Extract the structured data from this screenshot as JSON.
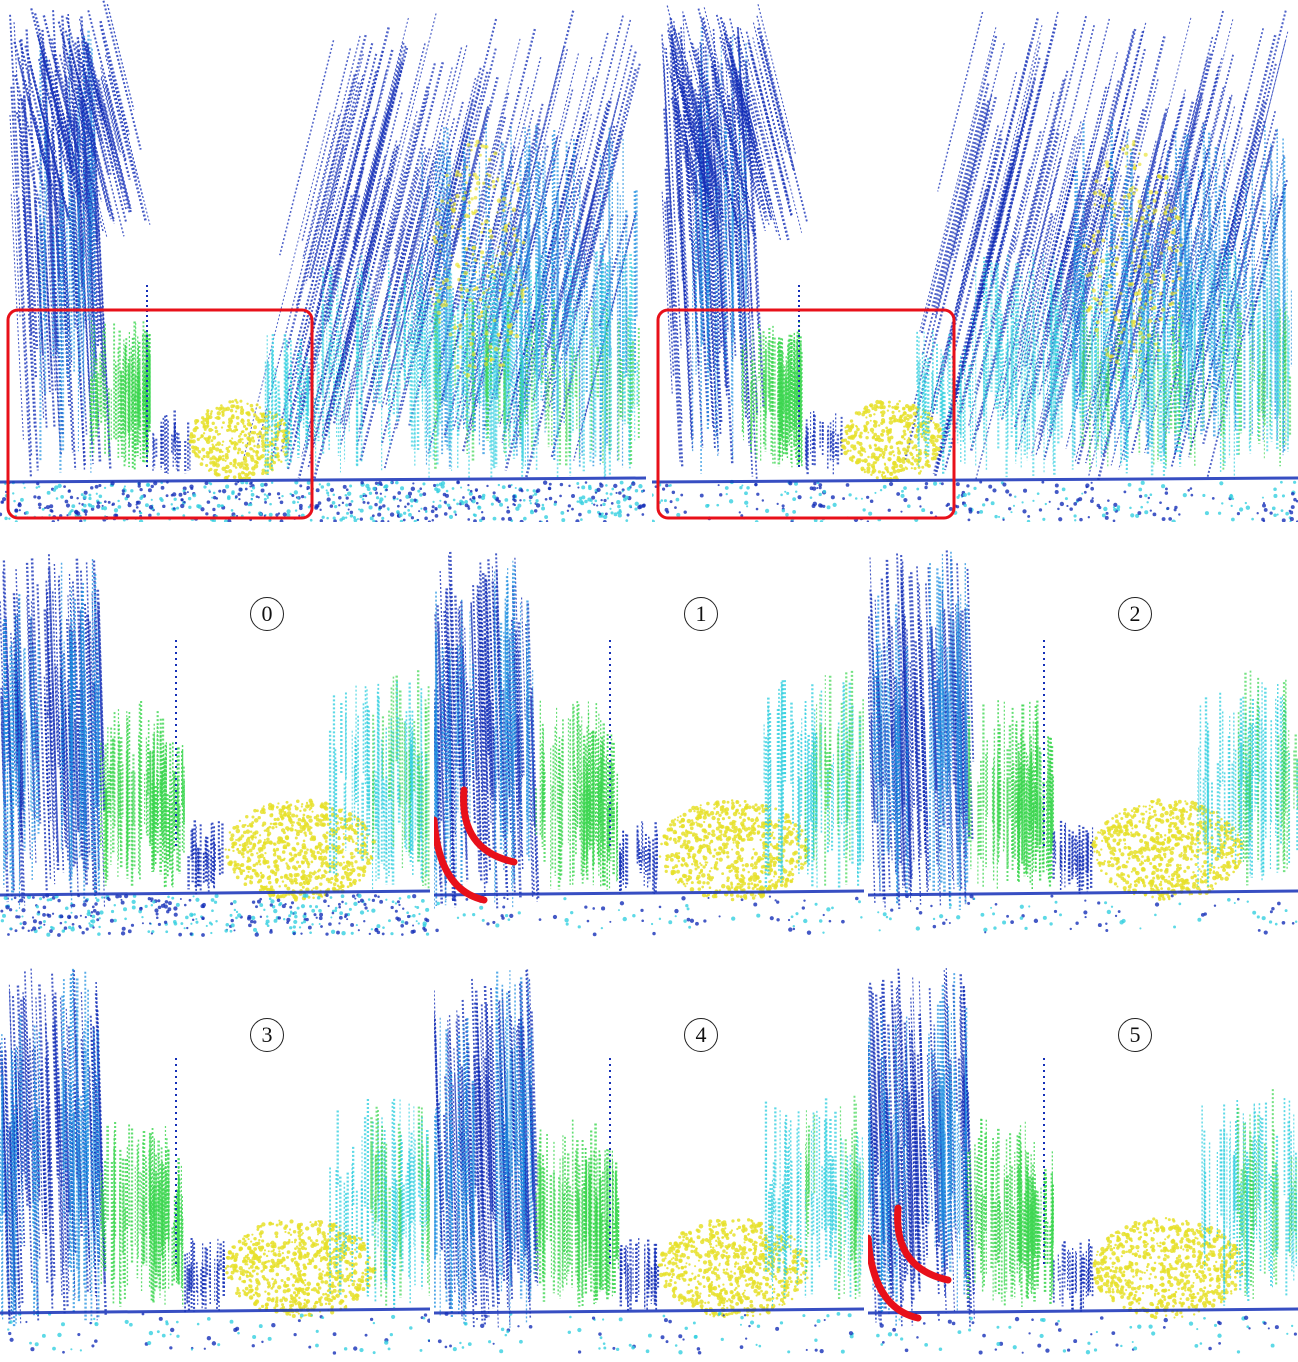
{
  "figure": {
    "top_row": [
      {
        "id": "original",
        "highlight_box": true
      },
      {
        "id": "reconstructed",
        "highlight_box": true
      }
    ],
    "zoom_panels": [
      {
        "label": "0",
        "arcs": false
      },
      {
        "label": "1",
        "arcs": true
      },
      {
        "label": "2",
        "arcs": false
      },
      {
        "label": "3",
        "arcs": false
      },
      {
        "label": "4",
        "arcs": false
      },
      {
        "label": "5",
        "arcs": true
      }
    ]
  },
  "colors": {
    "highlight": "#e8101a",
    "near": "#1530b8",
    "mid": "#1f8fe0",
    "cyan": "#35d0e0",
    "green": "#3cd650",
    "yellow": "#e6e02a"
  }
}
